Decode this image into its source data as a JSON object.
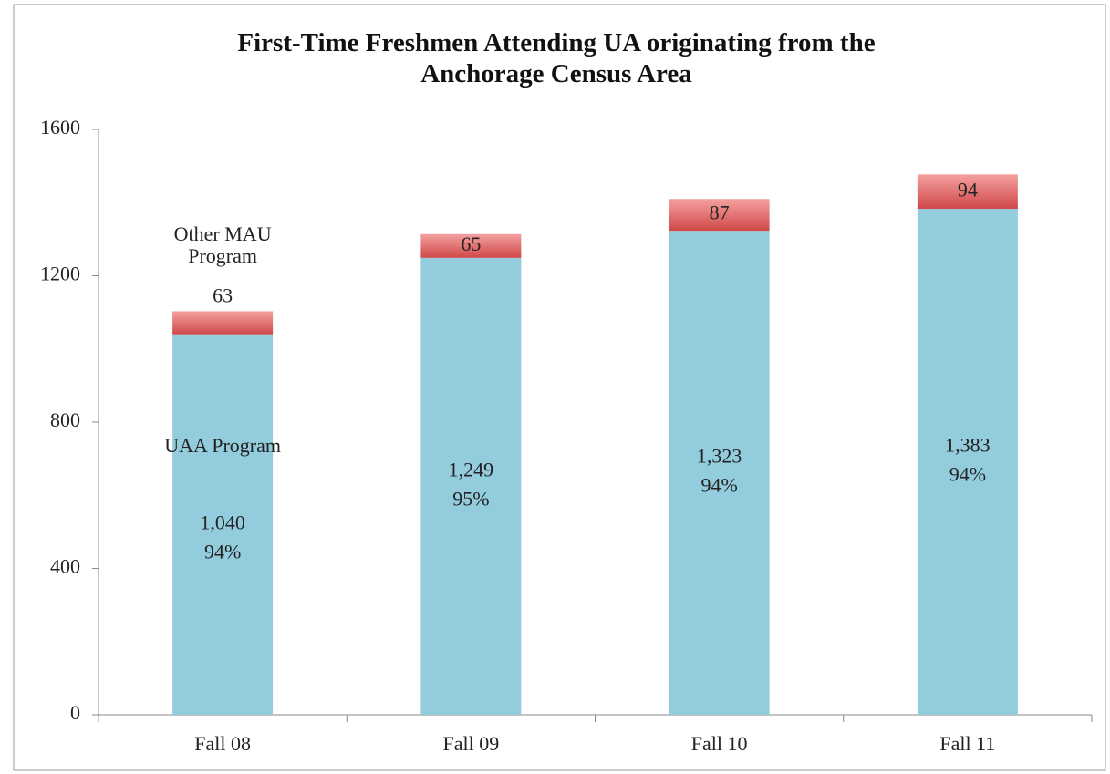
{
  "chart_data": {
    "type": "stacked_bar",
    "title": "First-Time Freshmen Attending UA originating from the Anchorage Census Area",
    "categories": [
      "Fall 08",
      "Fall 09",
      "Fall 10",
      "Fall 11"
    ],
    "series": [
      {
        "name": "UAA Program",
        "color": "#93CDDD",
        "values": [
          1040,
          1249,
          1323,
          1383
        ],
        "value_labels": [
          "1,040",
          "1,249",
          "1,323",
          "1,383"
        ],
        "share_labels": [
          "94%",
          "95%",
          "94%",
          "94%"
        ]
      },
      {
        "name": "Other MAU Program",
        "color": "#E46C6C",
        "values": [
          63,
          65,
          87,
          94
        ]
      }
    ],
    "ylim": [
      0,
      1600
    ],
    "yticks": [
      0,
      400,
      800,
      1200,
      1600
    ],
    "grid": false
  }
}
